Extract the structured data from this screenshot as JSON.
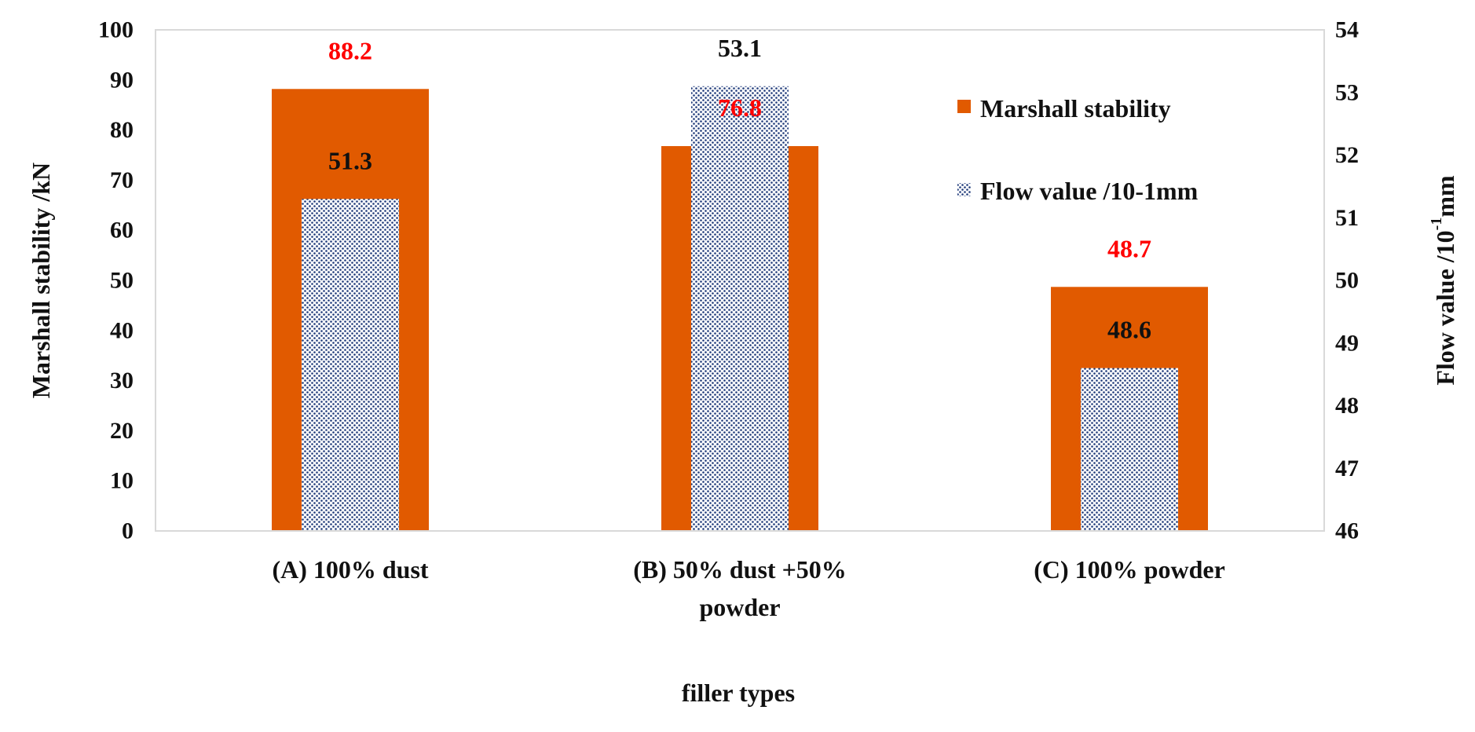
{
  "chart_data": {
    "type": "bar",
    "categories": [
      [
        "(A) 100% dust"
      ],
      [
        "(B) 50% dust +50%",
        "powder"
      ],
      [
        "(C) 100% powder"
      ]
    ],
    "series": [
      {
        "name": "Marshall stability",
        "axis": "left",
        "values": [
          88.2,
          76.8,
          48.7
        ],
        "labels": [
          "88.2",
          "76.8",
          "48.7"
        ],
        "color": "#E15A00",
        "label_color": "#FF0000",
        "pattern": "solid"
      },
      {
        "name": "Flow value /10-1mm",
        "axis": "right",
        "values": [
          51.3,
          53.1,
          48.6
        ],
        "labels": [
          "51.3",
          "53.1",
          "48.6"
        ],
        "color": "#1F3A7A",
        "label_color": "#111111",
        "pattern": "dotted"
      }
    ],
    "y_left": {
      "title": "Marshall stability /kN",
      "ylim": [
        0,
        100
      ],
      "ticks": [
        "0",
        "10",
        "20",
        "30",
        "40",
        "50",
        "60",
        "70",
        "80",
        "90",
        "100"
      ]
    },
    "y_right": {
      "title_main": "Flow value /10",
      "title_sup": "-1",
      "title_end": "mm",
      "ylim": [
        46,
        54
      ],
      "ticks": [
        "46",
        "47",
        "48",
        "49",
        "50",
        "51",
        "52",
        "53",
        "54"
      ]
    },
    "xlabel": "filler types",
    "legend_position": "top-right",
    "grid": false
  }
}
